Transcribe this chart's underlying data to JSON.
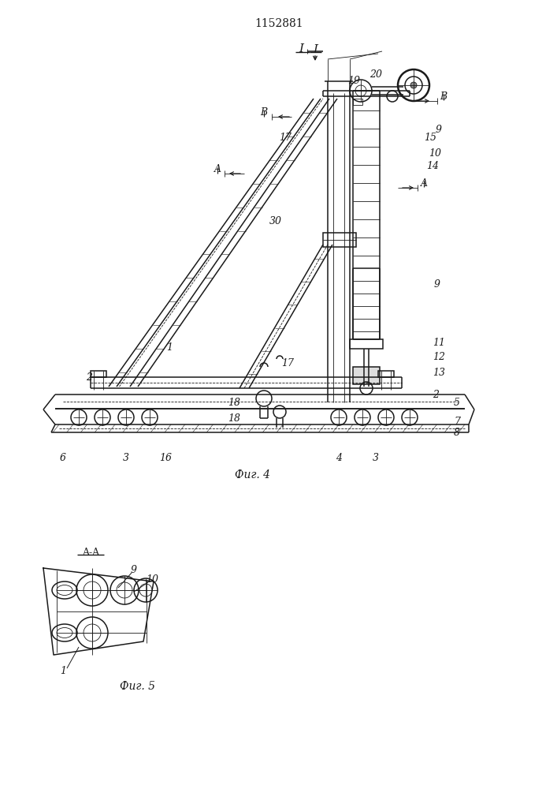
{
  "patent_number": "1152881",
  "fig4_label": "Фиг. 4",
  "fig5_label": "Фиг. 5",
  "bg_color": "#ffffff",
  "line_color": "#1a1a1a",
  "lw_thin": 0.6,
  "lw_med": 1.1,
  "lw_thick": 1.8
}
